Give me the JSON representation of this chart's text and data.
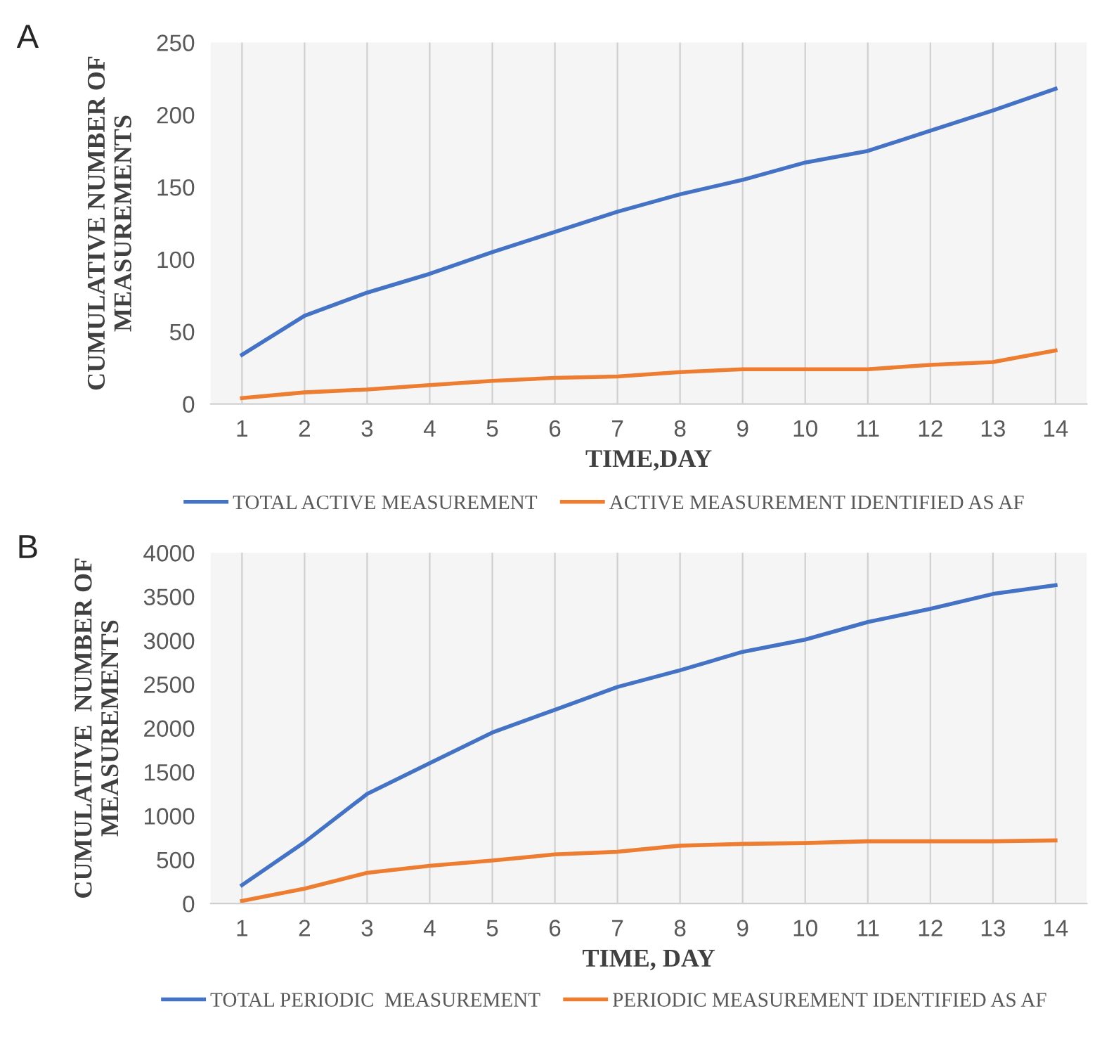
{
  "chart_data": [
    {
      "type": "line",
      "title": "A",
      "xlabel": "TIME,DAY",
      "ylabel": "CUMULATIVE NUMBER OF\nMEASUREMENTS",
      "categories": [
        "1",
        "2",
        "3",
        "4",
        "5",
        "6",
        "7",
        "8",
        "9",
        "10",
        "11",
        "12",
        "13",
        "14"
      ],
      "ylim": [
        0,
        250
      ],
      "yticks": [
        0,
        50,
        100,
        150,
        200,
        250
      ],
      "grid": "x",
      "legend": "bottom",
      "marker": "none",
      "series": [
        {
          "name": "TOTAL ACTIVE MEASUREMENT",
          "color": "#4472c4",
          "values": [
            34,
            61,
            77,
            90,
            105,
            119,
            133,
            145,
            155,
            167,
            175,
            189,
            203,
            218
          ]
        },
        {
          "name": "ACTIVE MEASUREMENT IDENTIFIED AS AF",
          "color": "#ed7d31",
          "values": [
            4,
            8,
            10,
            13,
            16,
            18,
            19,
            22,
            24,
            24,
            24,
            27,
            29,
            37
          ]
        }
      ]
    },
    {
      "type": "line",
      "title": "B",
      "xlabel": "TIME, DAY",
      "ylabel": "CUMULATIVE  NUMBER OF\nMEASUREMENTS",
      "categories": [
        "1",
        "2",
        "3",
        "4",
        "5",
        "6",
        "7",
        "8",
        "9",
        "10",
        "11",
        "12",
        "13",
        "14"
      ],
      "ylim": [
        0,
        4000
      ],
      "yticks": [
        0,
        500,
        1000,
        1500,
        2000,
        2500,
        3000,
        3500,
        4000
      ],
      "grid": "x",
      "legend": "bottom",
      "marker": "none",
      "series": [
        {
          "name": "TOTAL PERIODIC  MEASUREMENT",
          "color": "#4472c4",
          "values": [
            210,
            700,
            1250,
            1600,
            1950,
            2210,
            2470,
            2660,
            2870,
            3010,
            3210,
            3360,
            3530,
            3630
          ]
        },
        {
          "name": "PERIODIC MEASUREMENT IDENTIFIED AS AF",
          "color": "#ed7d31",
          "values": [
            30,
            170,
            350,
            430,
            490,
            560,
            590,
            660,
            680,
            690,
            710,
            710,
            710,
            720
          ]
        }
      ]
    }
  ]
}
